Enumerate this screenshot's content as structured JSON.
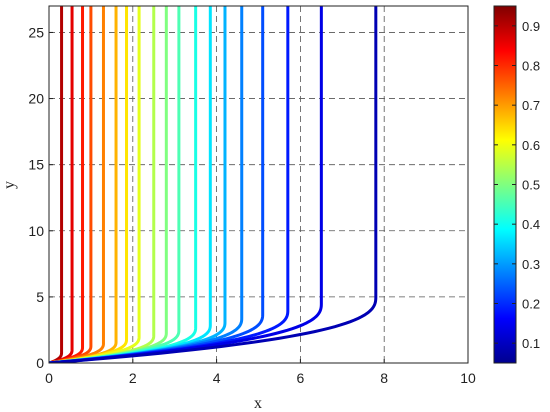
{
  "chart_data": {
    "type": "line",
    "xlabel": "x",
    "ylabel": "y",
    "xlim": [
      0,
      10
    ],
    "ylim": [
      0,
      27
    ],
    "xticks": [
      "0",
      "2",
      "4",
      "6",
      "8",
      "10"
    ],
    "yticks": [
      "0",
      "5",
      "10",
      "15",
      "20",
      "25"
    ],
    "grid": "dashed",
    "colormap": "jet",
    "colorbar": {
      "range": [
        0.05,
        0.95
      ],
      "ticks": [
        "0.1",
        "0.2",
        "0.3",
        "0.4",
        "0.5",
        "0.6",
        "0.7",
        "0.8",
        "0.9"
      ],
      "placement": "right"
    },
    "curve_shape": "Each curve starts at the origin, rises along a concave front until a knee height, then runs vertically to the top of the plot.",
    "series": [
      {
        "c": 0.95,
        "x_asymptote": 0.3,
        "y_knee": 0.8
      },
      {
        "c": 0.9,
        "x_asymptote": 0.55,
        "y_knee": 1.0
      },
      {
        "c": 0.85,
        "x_asymptote": 0.8,
        "y_knee": 1.2
      },
      {
        "c": 0.8,
        "x_asymptote": 1.0,
        "y_knee": 1.3
      },
      {
        "c": 0.75,
        "x_asymptote": 1.3,
        "y_knee": 1.5
      },
      {
        "c": 0.7,
        "x_asymptote": 1.6,
        "y_knee": 1.6
      },
      {
        "c": 0.65,
        "x_asymptote": 1.85,
        "y_knee": 1.8
      },
      {
        "c": 0.6,
        "x_asymptote": 2.15,
        "y_knee": 2.0
      },
      {
        "c": 0.55,
        "x_asymptote": 2.5,
        "y_knee": 2.1
      },
      {
        "c": 0.5,
        "x_asymptote": 2.8,
        "y_knee": 2.3
      },
      {
        "c": 0.45,
        "x_asymptote": 3.1,
        "y_knee": 2.5
      },
      {
        "c": 0.4,
        "x_asymptote": 3.5,
        "y_knee": 2.7
      },
      {
        "c": 0.35,
        "x_asymptote": 3.85,
        "y_knee": 2.9
      },
      {
        "c": 0.3,
        "x_asymptote": 4.2,
        "y_knee": 3.1
      },
      {
        "c": 0.25,
        "x_asymptote": 4.6,
        "y_knee": 3.4
      },
      {
        "c": 0.2,
        "x_asymptote": 5.1,
        "y_knee": 3.7
      },
      {
        "c": 0.15,
        "x_asymptote": 5.7,
        "y_knee": 4.0
      },
      {
        "c": 0.1,
        "x_asymptote": 6.5,
        "y_knee": 4.5
      },
      {
        "c": 0.05,
        "x_asymptote": 7.8,
        "y_knee": 5.0
      }
    ]
  }
}
